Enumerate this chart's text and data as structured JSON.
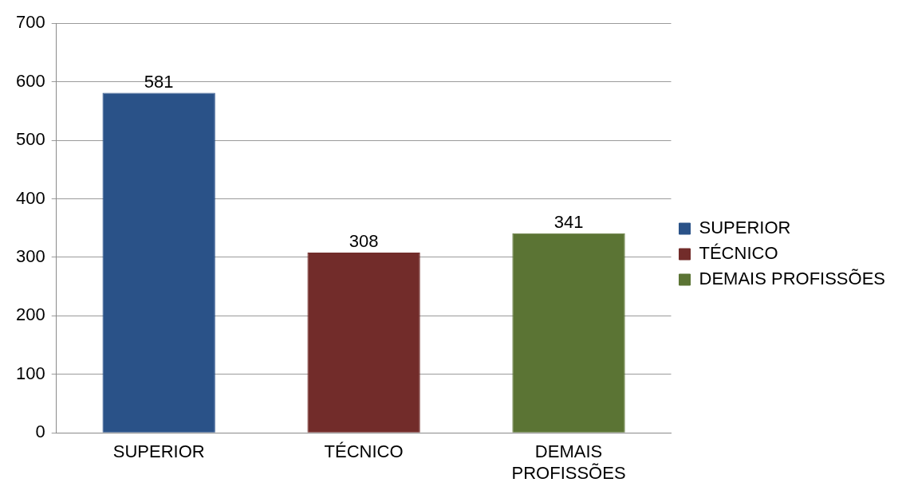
{
  "chart_data": {
    "type": "bar",
    "categories": [
      "SUPERIOR",
      "TÉCNICO",
      "DEMAIS PROFISSÕES"
    ],
    "series": [
      {
        "name": "SUPERIOR",
        "color": "#2a5288",
        "values": [
          581,
          null,
          null
        ]
      },
      {
        "name": "TÉCNICO",
        "color": "#722c2a",
        "values": [
          null,
          308,
          null
        ]
      },
      {
        "name": "DEMAIS PROFISSÕES",
        "color": "#5b7434",
        "values": [
          null,
          null,
          341
        ]
      }
    ],
    "ylim": [
      0,
      700
    ],
    "yticks": [
      0,
      100,
      200,
      300,
      400,
      500,
      600,
      700
    ],
    "grid": "y",
    "legend": "right",
    "data_labels": true
  }
}
